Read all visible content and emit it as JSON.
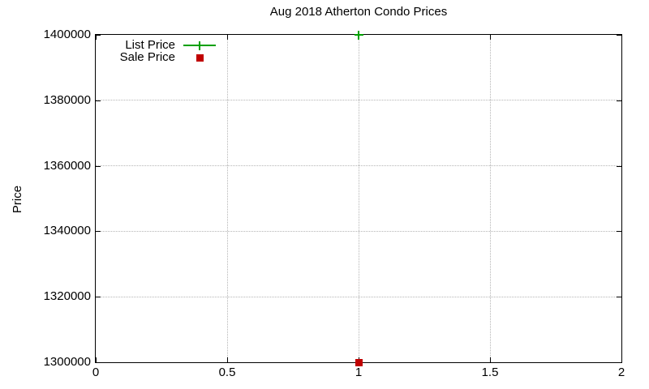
{
  "figure": {
    "background": "#ffffff"
  },
  "chart_data": {
    "type": "scatter",
    "title": "Aug 2018 Atherton Condo Prices",
    "xlabel": "",
    "ylabel": "Price",
    "xlim": [
      0,
      2
    ],
    "ylim": [
      1300000,
      1400000
    ],
    "xticks": {
      "values": [
        0,
        0.5,
        1,
        1.5,
        2
      ],
      "labels": [
        "0",
        "0.5",
        "1",
        "1.5",
        "2"
      ]
    },
    "yticks": {
      "values": [
        1300000,
        1320000,
        1340000,
        1360000,
        1380000,
        1400000
      ],
      "labels": [
        "1300000",
        "1320000",
        "1340000",
        "1360000",
        "1380000",
        "1400000"
      ]
    },
    "grid": true,
    "legend_position": "top-left-inside",
    "series": [
      {
        "name": "List Price",
        "marker": "plus",
        "with_line": true,
        "color": "#00a000",
        "points": [
          [
            1,
            1400000
          ]
        ]
      },
      {
        "name": "Sale Price",
        "marker": "square",
        "with_line": false,
        "color": "#c00000",
        "points": [
          [
            1,
            1300000
          ]
        ]
      }
    ],
    "colors": {
      "axis": "#000000",
      "grid": "#b5b5b5",
      "text": "#000000"
    }
  }
}
